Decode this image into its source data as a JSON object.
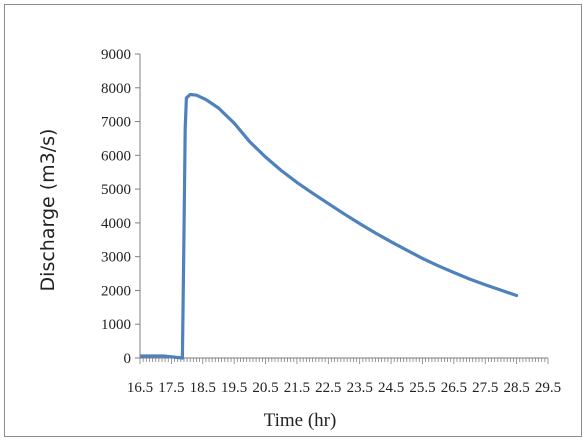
{
  "chart_data": {
    "type": "line",
    "title": "",
    "xlabel": "Time (hr)",
    "ylabel": "Discharge (m3/s)",
    "xlim": [
      16.5,
      29.5
    ],
    "ylim": [
      0,
      9000
    ],
    "yticks": [
      0,
      1000,
      2000,
      3000,
      4000,
      5000,
      6000,
      7000,
      8000,
      9000
    ],
    "xtick_labels": [
      "16.5",
      "17.5",
      "18.5",
      "19.5",
      "20.5",
      "21.5",
      "22.5",
      "23.5",
      "24.5",
      "25.5",
      "26.5",
      "27.5",
      "28.5",
      "29.5"
    ],
    "grid": false,
    "legend": "none",
    "series": [
      {
        "color": "#4f81bd",
        "points": [
          [
            16.55,
            60
          ],
          [
            17.25,
            60
          ],
          [
            17.85,
            0
          ],
          [
            17.9,
            3500
          ],
          [
            17.94,
            6800
          ],
          [
            17.98,
            7700
          ],
          [
            18.1,
            7800
          ],
          [
            18.3,
            7780
          ],
          [
            18.6,
            7650
          ],
          [
            19.0,
            7400
          ],
          [
            19.5,
            6950
          ],
          [
            20.0,
            6400
          ],
          [
            20.5,
            5950
          ],
          [
            21.0,
            5550
          ],
          [
            21.5,
            5200
          ],
          [
            22.0,
            4880
          ],
          [
            22.5,
            4570
          ],
          [
            23.0,
            4270
          ],
          [
            23.5,
            3980
          ],
          [
            24.0,
            3700
          ],
          [
            24.5,
            3440
          ],
          [
            25.0,
            3190
          ],
          [
            25.5,
            2950
          ],
          [
            26.0,
            2730
          ],
          [
            26.5,
            2530
          ],
          [
            27.0,
            2340
          ],
          [
            27.5,
            2170
          ],
          [
            28.0,
            2010
          ],
          [
            28.5,
            1850
          ]
        ]
      }
    ]
  }
}
